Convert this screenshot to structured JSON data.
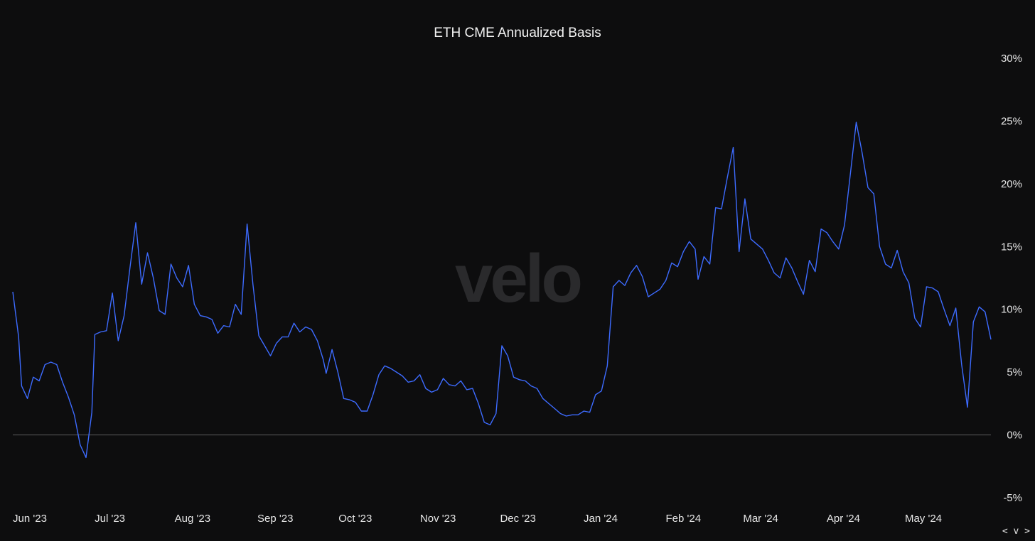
{
  "colors": {
    "background": "#0d0d0e",
    "line": "#3d6bff",
    "zero_line": "#5a5a5a",
    "text": "#e6e6e6",
    "watermark": "#2a2a2c"
  },
  "watermark": "velo",
  "nav_hint": "< v >",
  "chart_data": {
    "type": "line",
    "title": "ETH CME Annualized Basis",
    "xlabel": "",
    "ylabel": "",
    "y_axis_side": "right",
    "ylim": [
      -5,
      30
    ],
    "y_ticks": [
      30,
      25,
      20,
      15,
      10,
      5,
      0,
      -5
    ],
    "y_tick_labels": [
      "30%",
      "25%",
      "20%",
      "15%",
      "10%",
      "5%",
      "0%",
      "-5%"
    ],
    "x_start": "2023-06-01",
    "x_end": "2024-05-27",
    "x_ticks": [
      {
        "label": "Jun '23",
        "date": "2023-06-01"
      },
      {
        "label": "Jul '23",
        "date": "2023-07-01"
      },
      {
        "label": "Aug '23",
        "date": "2023-08-01"
      },
      {
        "label": "Sep '23",
        "date": "2023-09-01"
      },
      {
        "label": "Oct '23",
        "date": "2023-10-01"
      },
      {
        "label": "Nov '23",
        "date": "2023-11-01"
      },
      {
        "label": "Dec '23",
        "date": "2023-12-01"
      },
      {
        "label": "Jan '24",
        "date": "2024-01-01"
      },
      {
        "label": "Feb '24",
        "date": "2024-02-01"
      },
      {
        "label": "Mar '24",
        "date": "2024-03-01"
      },
      {
        "label": "Apr '24",
        "date": "2024-04-01"
      },
      {
        "label": "May '24",
        "date": "2024-05-01"
      }
    ],
    "grid": false,
    "zero_line": true,
    "series": [
      {
        "points": [
          [
            "2023-05-26",
            11.4
          ],
          [
            "2023-05-28",
            7.8
          ],
          [
            "2023-05-29",
            3.9
          ],
          [
            "2023-05-31",
            2.9
          ],
          [
            "2023-06-02",
            4.6
          ],
          [
            "2023-06-04",
            4.3
          ],
          [
            "2023-06-06",
            5.6
          ],
          [
            "2023-06-08",
            5.8
          ],
          [
            "2023-06-10",
            5.6
          ],
          [
            "2023-06-12",
            4.2
          ],
          [
            "2023-06-14",
            3.0
          ],
          [
            "2023-06-16",
            1.6
          ],
          [
            "2023-06-18",
            -0.8
          ],
          [
            "2023-06-20",
            -1.8
          ],
          [
            "2023-06-22",
            1.8
          ],
          [
            "2023-06-23",
            8.0
          ],
          [
            "2023-06-25",
            8.2
          ],
          [
            "2023-06-27",
            8.3
          ],
          [
            "2023-06-29",
            11.3
          ],
          [
            "2023-07-01",
            7.5
          ],
          [
            "2023-07-03",
            9.5
          ],
          [
            "2023-07-05",
            13.3
          ],
          [
            "2023-07-07",
            16.9
          ],
          [
            "2023-07-09",
            12.0
          ],
          [
            "2023-07-11",
            14.5
          ],
          [
            "2023-07-13",
            12.5
          ],
          [
            "2023-07-15",
            9.9
          ],
          [
            "2023-07-17",
            9.6
          ],
          [
            "2023-07-19",
            13.6
          ],
          [
            "2023-07-21",
            12.5
          ],
          [
            "2023-07-23",
            11.8
          ],
          [
            "2023-07-25",
            13.5
          ],
          [
            "2023-07-27",
            10.4
          ],
          [
            "2023-07-29",
            9.5
          ],
          [
            "2023-07-31",
            9.4
          ],
          [
            "2023-08-02",
            9.2
          ],
          [
            "2023-08-04",
            8.1
          ],
          [
            "2023-08-06",
            8.7
          ],
          [
            "2023-08-08",
            8.6
          ],
          [
            "2023-08-10",
            10.4
          ],
          [
            "2023-08-12",
            9.6
          ],
          [
            "2023-08-14",
            16.8
          ],
          [
            "2023-08-16",
            12.0
          ],
          [
            "2023-08-18",
            7.9
          ],
          [
            "2023-08-20",
            7.1
          ],
          [
            "2023-08-22",
            6.3
          ],
          [
            "2023-08-24",
            7.3
          ],
          [
            "2023-08-26",
            7.8
          ],
          [
            "2023-08-28",
            7.8
          ],
          [
            "2023-08-30",
            8.9
          ],
          [
            "2023-09-01",
            8.2
          ],
          [
            "2023-09-03",
            8.6
          ],
          [
            "2023-09-05",
            8.4
          ],
          [
            "2023-09-07",
            7.5
          ],
          [
            "2023-09-09",
            6.0
          ],
          [
            "2023-09-10",
            4.9
          ],
          [
            "2023-09-12",
            6.8
          ],
          [
            "2023-09-14",
            5.0
          ],
          [
            "2023-09-16",
            2.9
          ],
          [
            "2023-09-18",
            2.8
          ],
          [
            "2023-09-20",
            2.6
          ],
          [
            "2023-09-22",
            1.9
          ],
          [
            "2023-09-24",
            1.9
          ],
          [
            "2023-09-26",
            3.2
          ],
          [
            "2023-09-28",
            4.8
          ],
          [
            "2023-09-30",
            5.5
          ],
          [
            "2023-10-02",
            5.3
          ],
          [
            "2023-10-04",
            5.0
          ],
          [
            "2023-10-06",
            4.7
          ],
          [
            "2023-10-08",
            4.2
          ],
          [
            "2023-10-10",
            4.3
          ],
          [
            "2023-10-12",
            4.8
          ],
          [
            "2023-10-14",
            3.7
          ],
          [
            "2023-10-16",
            3.4
          ],
          [
            "2023-10-18",
            3.6
          ],
          [
            "2023-10-20",
            4.5
          ],
          [
            "2023-10-22",
            4.0
          ],
          [
            "2023-10-24",
            3.9
          ],
          [
            "2023-10-26",
            4.3
          ],
          [
            "2023-10-28",
            3.6
          ],
          [
            "2023-10-30",
            3.7
          ],
          [
            "2023-11-01",
            2.5
          ],
          [
            "2023-11-03",
            1.0
          ],
          [
            "2023-11-05",
            0.8
          ],
          [
            "2023-11-07",
            1.7
          ],
          [
            "2023-11-09",
            7.1
          ],
          [
            "2023-11-11",
            6.3
          ],
          [
            "2023-11-13",
            4.6
          ],
          [
            "2023-11-15",
            4.4
          ],
          [
            "2023-11-17",
            4.3
          ],
          [
            "2023-11-19",
            3.9
          ],
          [
            "2023-11-21",
            3.7
          ],
          [
            "2023-11-23",
            2.9
          ],
          [
            "2023-11-25",
            2.5
          ],
          [
            "2023-11-27",
            2.1
          ],
          [
            "2023-11-29",
            1.7
          ],
          [
            "2023-12-01",
            1.5
          ],
          [
            "2023-12-03",
            1.6
          ],
          [
            "2023-12-05",
            1.6
          ],
          [
            "2023-12-07",
            1.9
          ],
          [
            "2023-12-09",
            1.8
          ],
          [
            "2023-12-11",
            3.2
          ],
          [
            "2023-12-13",
            3.5
          ],
          [
            "2023-12-15",
            5.5
          ],
          [
            "2023-12-17",
            11.8
          ],
          [
            "2023-12-19",
            12.3
          ],
          [
            "2023-12-21",
            11.9
          ],
          [
            "2023-12-23",
            12.9
          ],
          [
            "2023-12-25",
            13.5
          ],
          [
            "2023-12-27",
            12.6
          ],
          [
            "2023-12-29",
            11.0
          ],
          [
            "2023-12-31",
            11.3
          ]
        ],
        "note_points_continued": [],
        "values_tail": [
          [
            "2024-01-02",
            11.6
          ],
          [
            "2024-01-04",
            12.3
          ],
          [
            "2024-01-06",
            13.7
          ],
          [
            "2024-01-08",
            13.4
          ],
          [
            "2024-01-10",
            14.6
          ],
          [
            "2024-01-12",
            15.4
          ],
          [
            "2024-01-14",
            14.8
          ],
          [
            "2024-01-15",
            12.4
          ],
          [
            "2024-01-17",
            14.2
          ],
          [
            "2024-01-19",
            13.6
          ],
          [
            "2024-01-21",
            18.1
          ],
          [
            "2024-01-23",
            18.0
          ],
          [
            "2024-01-25",
            20.5
          ],
          [
            "2024-01-27",
            22.9
          ],
          [
            "2024-01-29",
            14.6
          ],
          [
            "2024-01-31",
            18.8
          ],
          [
            "2024-02-02",
            15.6
          ],
          [
            "2024-02-04",
            15.2
          ],
          [
            "2024-02-06",
            14.8
          ],
          [
            "2024-02-08",
            13.9
          ],
          [
            "2024-02-10",
            12.9
          ],
          [
            "2024-02-12",
            12.5
          ],
          [
            "2024-02-14",
            14.1
          ],
          [
            "2024-02-16",
            13.3
          ],
          [
            "2024-02-18",
            12.2
          ],
          [
            "2024-02-20",
            11.2
          ],
          [
            "2024-02-22",
            13.9
          ],
          [
            "2024-02-24",
            13.0
          ],
          [
            "2024-02-26",
            16.4
          ],
          [
            "2024-02-28",
            16.1
          ],
          [
            "2024-03-01",
            15.4
          ],
          [
            "2024-03-03",
            14.8
          ],
          [
            "2024-03-05",
            16.7
          ],
          [
            "2024-03-07",
            20.8
          ],
          [
            "2024-03-09",
            24.9
          ],
          [
            "2024-03-11",
            22.5
          ],
          [
            "2024-03-13",
            19.7
          ],
          [
            "2024-03-15",
            19.2
          ],
          [
            "2024-03-17",
            15.0
          ],
          [
            "2024-03-19",
            13.6
          ],
          [
            "2024-03-21",
            13.3
          ],
          [
            "2024-03-23",
            14.7
          ],
          [
            "2024-03-25",
            13.0
          ],
          [
            "2024-03-27",
            12.1
          ],
          [
            "2024-03-29",
            9.3
          ],
          [
            "2024-03-31",
            8.6
          ],
          [
            "2024-04-02",
            11.8
          ],
          [
            "2024-04-04",
            11.7
          ],
          [
            "2024-04-06",
            11.4
          ],
          [
            "2024-04-08",
            10.0
          ],
          [
            "2024-04-10",
            8.7
          ],
          [
            "2024-04-12",
            10.1
          ],
          [
            "2024-04-14",
            5.6
          ],
          [
            "2024-04-16",
            2.2
          ],
          [
            "2024-04-18",
            9.0
          ],
          [
            "2024-04-20",
            10.2
          ],
          [
            "2024-04-22",
            9.8
          ],
          [
            "2024-04-24",
            7.6
          ]
        ]
      }
    ]
  }
}
